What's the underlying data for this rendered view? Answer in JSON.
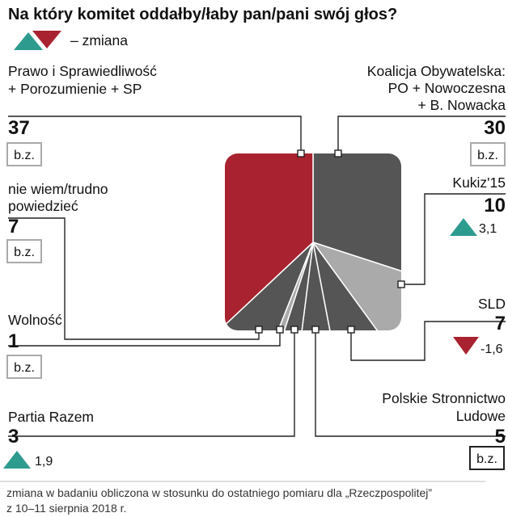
{
  "title": "Na który komitet oddałby/łaby pan/pani swój głos?",
  "legend_label": "– zmiana",
  "nochange_label": "b.z.",
  "footnote_line1": "zmiana w badaniu obliczona w stosunku do ostatniego pomiaru dla „Rzeczpospolitej”",
  "footnote_line2": "z 10–11 sierpnia 2018 r.",
  "colors": {
    "red": "#a8232f",
    "dark": "#555555",
    "light": "#aaaaaa",
    "up": "#2e9b8f",
    "down": "#a8232f"
  },
  "chart_data": {
    "type": "pie",
    "unit": "%",
    "slices": [
      {
        "name_lines": [
          "Koalicja Obywatelska:",
          "PO + Nowoczesna",
          "+ B. Nowacka"
        ],
        "value": 30,
        "value_label": "30",
        "change": null,
        "color": "dark"
      },
      {
        "name_lines": [
          "Kukiz'15"
        ],
        "value": 10,
        "value_label": "10",
        "change": 3.1,
        "change_label": "3,1",
        "color": "light"
      },
      {
        "name_lines": [
          "SLD"
        ],
        "value": 7,
        "value_label": "7",
        "change": -1.6,
        "change_label": "-1,6",
        "color": "dark"
      },
      {
        "name_lines": [
          "Polskie Stronnictwo",
          "Ludowe"
        ],
        "value": 5,
        "value_label": "5",
        "change": null,
        "color": "dark"
      },
      {
        "name_lines": [
          "Partia Razem"
        ],
        "value": 3,
        "value_label": "3",
        "change": 1.9,
        "change_label": "1,9",
        "color": "dark"
      },
      {
        "name_lines": [
          "Wolność"
        ],
        "value": 1,
        "value_label": "1",
        "change": null,
        "color": "light"
      },
      {
        "name_lines": [
          "nie wiem/trudno",
          "powiedzieć"
        ],
        "value": 7,
        "value_label": "7",
        "change": null,
        "color": "dark"
      },
      {
        "name_lines": [
          "Prawo i Sprawiedliwość",
          "+ Porozumienie + SP"
        ],
        "value": 37,
        "value_label": "37",
        "change": null,
        "color": "red"
      }
    ]
  }
}
